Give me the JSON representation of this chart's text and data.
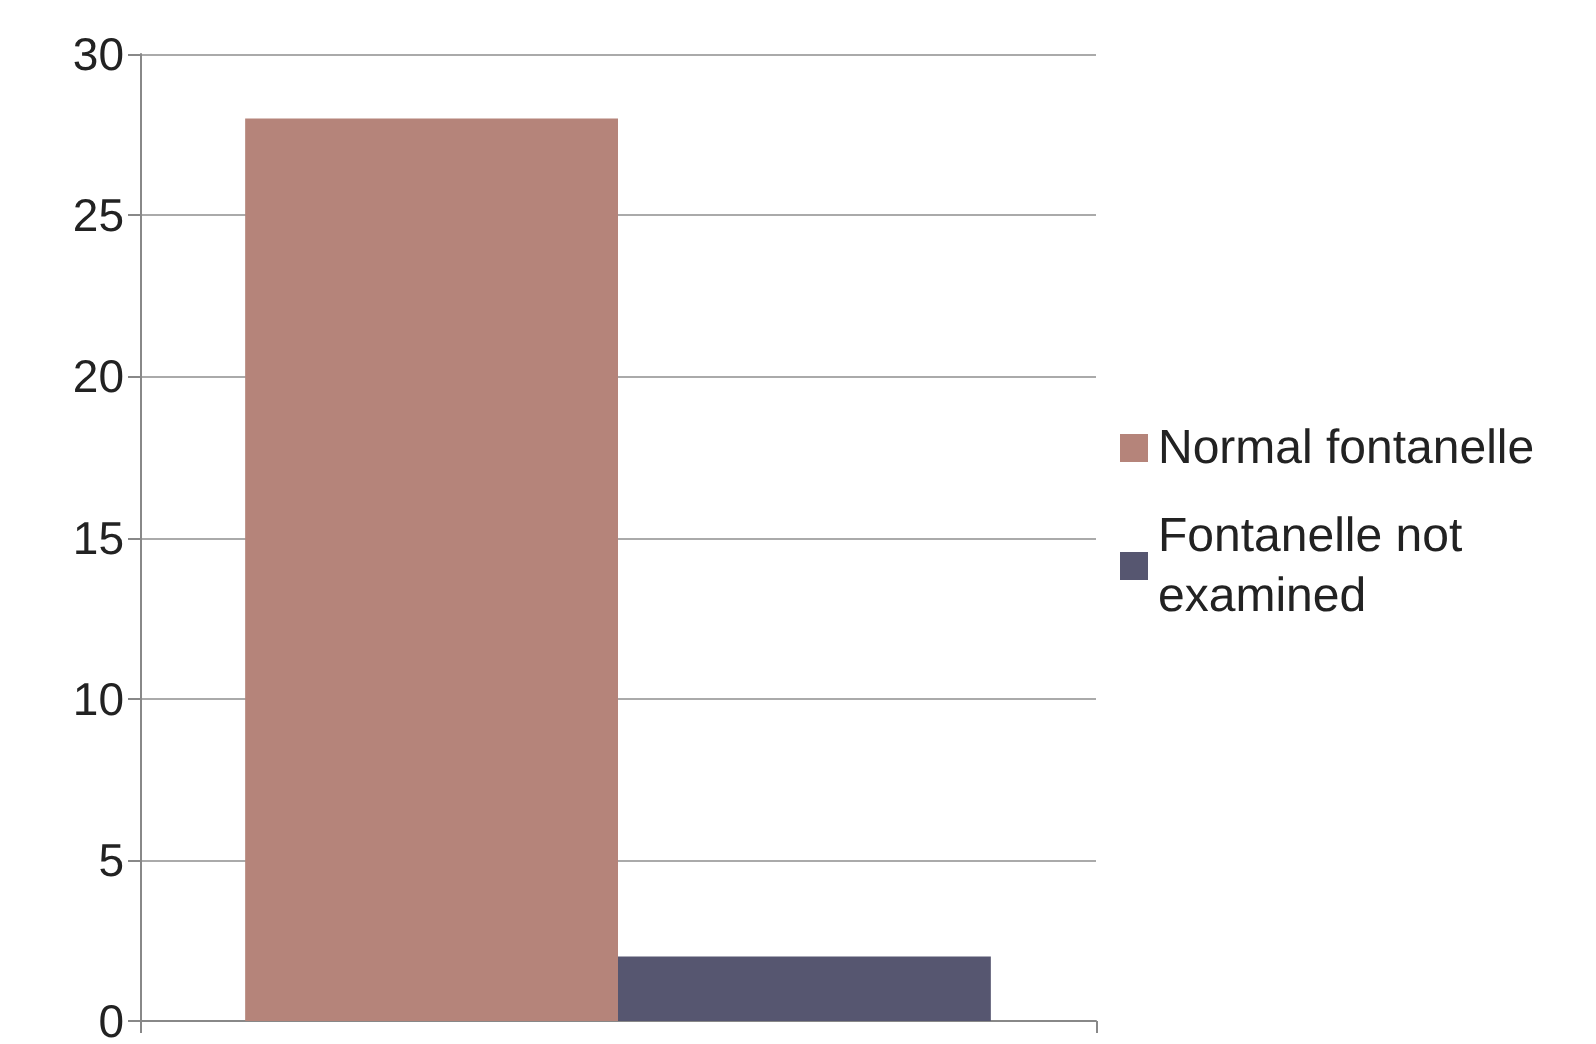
{
  "chart_data": {
    "type": "bar",
    "categories": [
      null
    ],
    "series": [
      {
        "name": "Normal fontanelle",
        "color": "#b5847a",
        "values": [
          28
        ]
      },
      {
        "name": "Fontanelle not examined",
        "color": "#565670",
        "values": [
          2
        ]
      }
    ],
    "ylim": [
      0,
      30
    ],
    "yticks": [
      0,
      5,
      10,
      15,
      20,
      25,
      30
    ],
    "grid": "y",
    "legend": "right"
  }
}
